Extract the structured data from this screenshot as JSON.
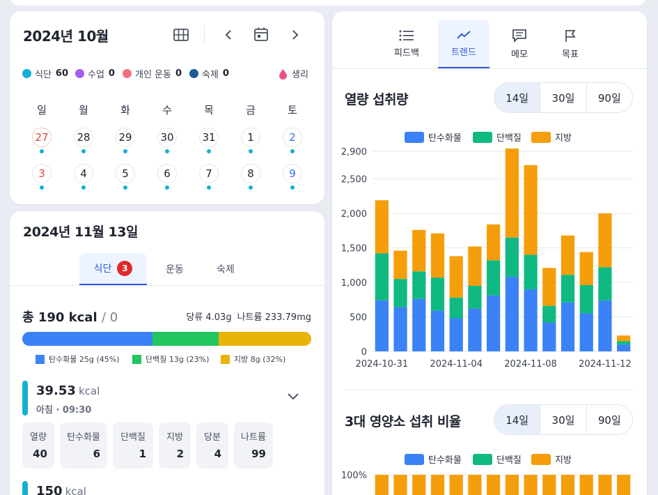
{
  "calendar": {
    "title": "2024년 10월",
    "legend": [
      {
        "label": "식단",
        "count": "60",
        "color": "#14b0d2"
      },
      {
        "label": "수업",
        "count": "0",
        "color": "#a55df0"
      },
      {
        "label": "개인 운동",
        "count": "0",
        "color": "#f2707f"
      },
      {
        "label": "숙제",
        "count": "0",
        "color": "#1a5c96"
      }
    ],
    "period_label": "생리",
    "weekdays": [
      "일",
      "월",
      "화",
      "수",
      "목",
      "금",
      "토"
    ],
    "week1": [
      "27",
      "28",
      "29",
      "30",
      "31",
      "1",
      "2"
    ],
    "week2": [
      "3",
      "4",
      "5",
      "6",
      "7",
      "8",
      "9"
    ]
  },
  "detail": {
    "title": "2024년 11월 13일",
    "tabs": [
      "식단",
      "운동",
      "숙제"
    ],
    "badge": "3",
    "total_kcal": "총 190 kcal",
    "total_target": "/ 0",
    "sugar": "당류 4.03g",
    "sodium": "나트륨 233.79mg",
    "macro_legend": [
      "탄수화물 25g (45%)",
      "단백질 13g (23%)",
      "지방 8g (32%)"
    ],
    "macro_pct": [
      45,
      23,
      32
    ],
    "meals": [
      {
        "kcal": "39.53",
        "unit": "kcal",
        "time": "아침 · 09:30",
        "chips": [
          {
            "label": "열량",
            "value": "40"
          },
          {
            "label": "탄수화물",
            "value": "6"
          },
          {
            "label": "단백질",
            "value": "1"
          },
          {
            "label": "지방",
            "value": "2"
          },
          {
            "label": "당분",
            "value": "4"
          },
          {
            "label": "나트륨",
            "value": "99"
          }
        ]
      },
      {
        "kcal": "150",
        "unit": "kcal"
      }
    ]
  },
  "right": {
    "tabs": [
      "피드백",
      "트렌드",
      "메모",
      "목표"
    ],
    "section1_title": "열량 섭취량",
    "section2_title": "3대 영양소 섭취 비율",
    "ranges": [
      "14일",
      "30일",
      "90일"
    ]
  },
  "colors": {
    "carb": "#3b82f6",
    "protein": "#10b981",
    "fat": "#f59e0b",
    "accent": "#2a5bd7"
  },
  "chart_data": [
    {
      "type": "bar",
      "stacked": true,
      "legend": [
        "탄수화물",
        "단백질",
        "지방"
      ],
      "x": [
        "2024-10-31",
        "2024-11-01",
        "2024-11-02",
        "2024-11-03",
        "2024-11-04",
        "2024-11-05",
        "2024-11-06",
        "2024-11-07",
        "2024-11-08",
        "2024-11-09",
        "2024-11-10",
        "2024-11-11",
        "2024-11-12",
        "2024-11-13"
      ],
      "x_tick_labels": [
        "2024-10-31",
        "2024-11-04",
        "2024-11-08",
        "2024-11-12"
      ],
      "y_tick_labels": [
        "0",
        "500",
        "1,000",
        "1,500",
        "2,000",
        "2,500",
        "2,900"
      ],
      "series": [
        {
          "name": "탄수화물",
          "values": [
            740,
            640,
            760,
            590,
            480,
            620,
            810,
            1080,
            900,
            420,
            710,
            550,
            740,
            100
          ]
        },
        {
          "name": "단백질",
          "values": [
            680,
            410,
            400,
            480,
            300,
            330,
            510,
            570,
            500,
            240,
            400,
            410,
            480,
            50
          ]
        },
        {
          "name": "지방",
          "values": [
            770,
            410,
            600,
            640,
            600,
            570,
            520,
            1290,
            1300,
            550,
            570,
            480,
            780,
            80
          ]
        }
      ],
      "ylim": [
        0,
        2900
      ]
    },
    {
      "type": "bar",
      "stacked": true,
      "legend": [
        "탄수화물",
        "단백질",
        "지방"
      ],
      "y_tick_labels": [
        "100%"
      ],
      "ylim": [
        0,
        100
      ]
    }
  ]
}
